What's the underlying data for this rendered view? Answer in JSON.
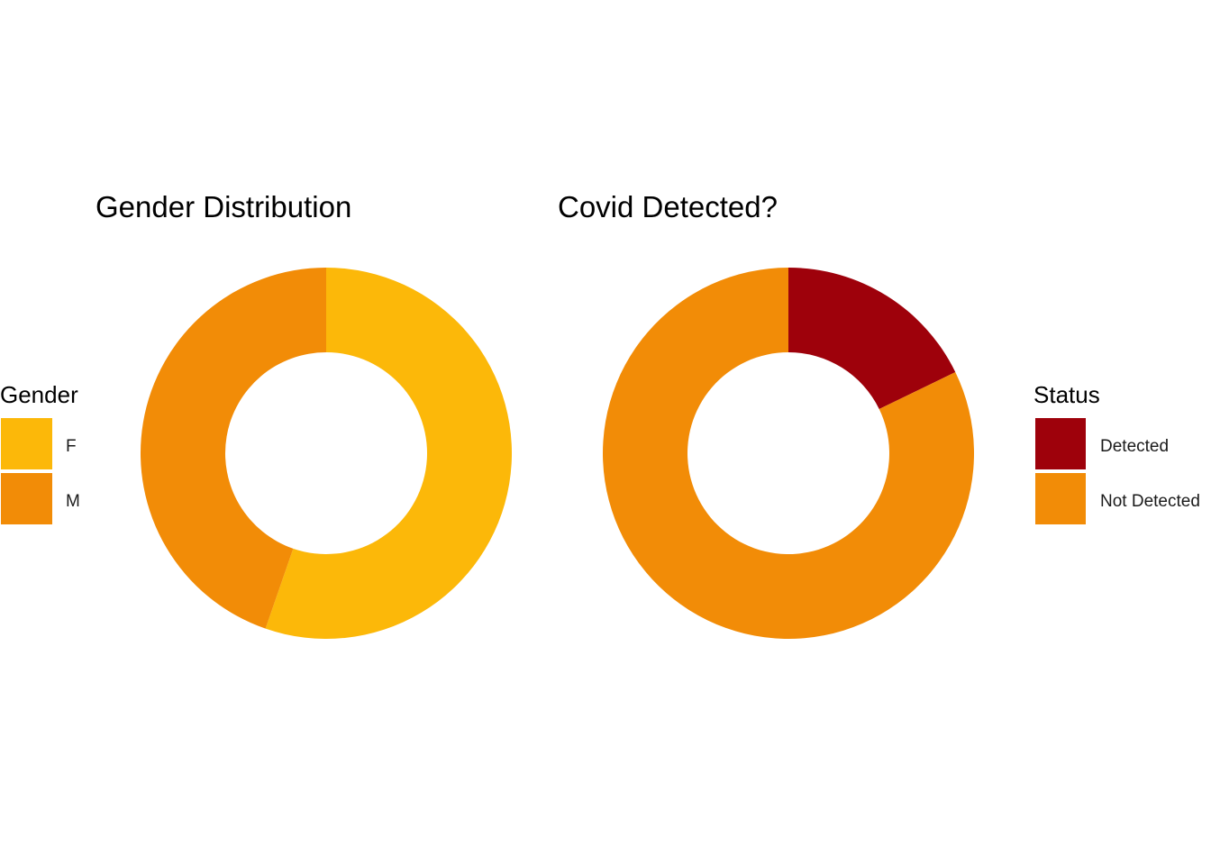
{
  "chart_data": [
    {
      "type": "pie",
      "donut": true,
      "title": "Gender Distribution",
      "legend_title": "Gender",
      "legend_position": "left",
      "categories": [
        "F",
        "M"
      ],
      "values": [
        55.3,
        44.7
      ],
      "colors": [
        "#FCB809",
        "#F28C07"
      ]
    },
    {
      "type": "pie",
      "donut": true,
      "title": "Covid Detected?",
      "legend_title": "Status",
      "legend_position": "right",
      "categories": [
        "Detected",
        "Not Detected"
      ],
      "values": [
        17.8,
        82.2
      ],
      "colors": [
        "#9E010B",
        "#F28C07"
      ]
    }
  ]
}
